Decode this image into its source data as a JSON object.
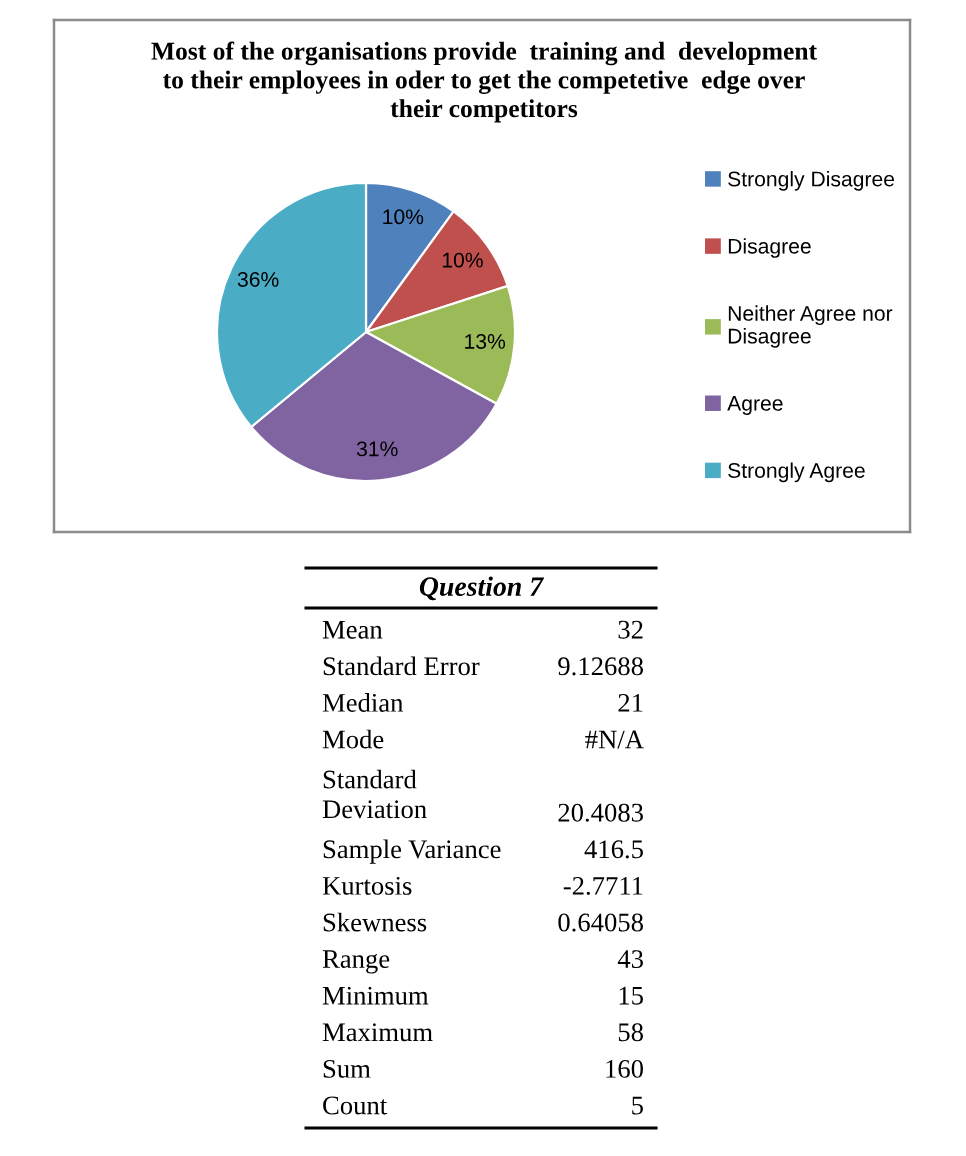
{
  "chart_data": [
    {
      "type": "pie",
      "title": "Most of the organisations provide  training and  development\nto their employees in oder to get the competetive  edge over\ntheir competitors",
      "categories": [
        "Strongly Disagree",
        "Disagree",
        "Neither Agree nor Disagree",
        "Agree",
        "Strongly Agree"
      ],
      "values": [
        10,
        10,
        13,
        31,
        36
      ],
      "colors": [
        "#4f81bd",
        "#c0504d",
        "#9bbb59",
        "#8064a2",
        "#4bacc6"
      ],
      "value_labels": [
        "10%",
        "10%",
        "13%",
        "31%",
        "36%"
      ],
      "legend": "right"
    },
    {
      "type": "other",
      "title": "Question 7",
      "annotations": [
        "Mean",
        "32",
        "Standard Error",
        "9.12688",
        "Median",
        "21",
        "Mode",
        "#N/A",
        "Standard\nDeviation",
        "20.4083",
        "Sample Variance",
        "416.5",
        "Kurtosis",
        "-2.7711",
        "Skewness",
        "0.64058",
        "Range",
        "43",
        "Minimum",
        "15",
        "Maximum",
        "58",
        "Sum",
        "160",
        "Count",
        "5"
      ]
    }
  ]
}
